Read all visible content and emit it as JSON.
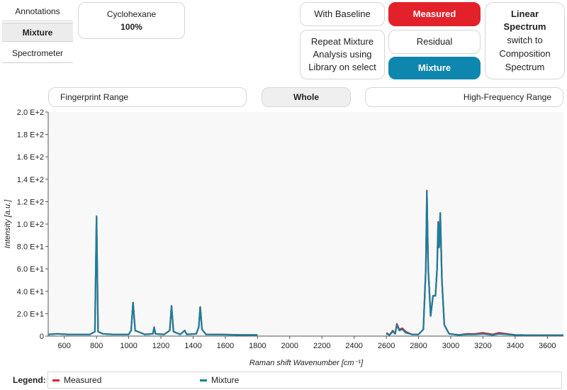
{
  "sidebar": {
    "tabs": [
      {
        "label": "Annotations",
        "active": false
      },
      {
        "label": "Mixture",
        "active": true
      },
      {
        "label": "Spectrometer",
        "active": false
      }
    ]
  },
  "composition": {
    "component": "Cyclohexane",
    "percent": "100%"
  },
  "buttons": {
    "with_baseline": "With Baseline",
    "measured": "Measured",
    "repeat_line1": "Repeat Mixture",
    "repeat_line2": "Analysis using",
    "repeat_line3": "Library on select",
    "residual": "Residual",
    "mixture": "Mixture"
  },
  "spectrum_switch": {
    "title_line1": "Linear",
    "title_line2": "Spectrum",
    "line3": "switch to",
    "line4": "Composition",
    "line5": "Spectrum"
  },
  "ranges": {
    "fingerprint": "Fingerprint Range",
    "whole": "Whole",
    "high_frequency": "High-Frequency Range"
  },
  "colors": {
    "measured": "#e3212b",
    "mixture": "#1a7f9c",
    "accent_teal": "#0e86ad"
  },
  "legend": {
    "title": "Legend:",
    "items": [
      "Measured",
      "Mixture"
    ]
  },
  "chart_data": {
    "type": "line",
    "xlabel": "Raman shift Wavenumber [cm⁻¹]",
    "ylabel": "Intensity [a.u.]",
    "xlim": [
      500,
      3700
    ],
    "ylim": [
      0,
      200
    ],
    "x_ticks": [
      600,
      800,
      1000,
      1200,
      1400,
      1600,
      1800,
      2000,
      2200,
      2400,
      2600,
      2800,
      3000,
      3200,
      3400,
      3600
    ],
    "y_ticks": [
      {
        "value": 0,
        "label": "0"
      },
      {
        "value": 20,
        "label": "2.0 E+1"
      },
      {
        "value": 40,
        "label": "4.0 E+1"
      },
      {
        "value": 60,
        "label": "6.0 E+1"
      },
      {
        "value": 80,
        "label": "8.0 E+1"
      },
      {
        "value": 100,
        "label": "1.0 E+2"
      },
      {
        "value": 120,
        "label": "1.2 E+2"
      },
      {
        "value": 140,
        "label": "1.4 E+2"
      },
      {
        "value": 160,
        "label": "1.6 E+2"
      },
      {
        "value": 180,
        "label": "1.8 E+2"
      },
      {
        "value": 200,
        "label": "2.0 E+2"
      }
    ],
    "grid": false,
    "legend_position": "bottom",
    "series": [
      {
        "name": "Measured",
        "segments": [
          [
            [
              500,
              1.5
            ],
            [
              560,
              2
            ],
            [
              620,
              1.5
            ],
            [
              700,
              1.5
            ],
            [
              760,
              1.5
            ],
            [
              790,
              4
            ],
            [
              800,
              106
            ],
            [
              810,
              4
            ],
            [
              840,
              2
            ],
            [
              900,
              1.5
            ],
            [
              1000,
              1.5
            ],
            [
              1015,
              5
            ],
            [
              1027,
              30
            ],
            [
              1040,
              5
            ],
            [
              1100,
              1.5
            ],
            [
              1150,
              2
            ],
            [
              1158,
              8
            ],
            [
              1166,
              2
            ],
            [
              1220,
              1.5
            ],
            [
              1255,
              5
            ],
            [
              1266,
              27
            ],
            [
              1278,
              4
            ],
            [
              1320,
              1.5
            ],
            [
              1348,
              5
            ],
            [
              1360,
              1.5
            ],
            [
              1420,
              2
            ],
            [
              1435,
              8
            ],
            [
              1444,
              26
            ],
            [
              1455,
              6
            ],
            [
              1480,
              1.5
            ],
            [
              1600,
              1.3
            ],
            [
              1700,
              1
            ],
            [
              1800,
              1
            ]
          ],
          [
            [
              2600,
              3
            ],
            [
              2620,
              1
            ],
            [
              2640,
              5
            ],
            [
              2655,
              2
            ],
            [
              2665,
              11
            ],
            [
              2680,
              6
            ],
            [
              2700,
              7
            ],
            [
              2720,
              4
            ],
            [
              2760,
              1.5
            ],
            [
              2800,
              1.5
            ],
            [
              2830,
              6
            ],
            [
              2845,
              60
            ],
            [
              2852,
              130
            ],
            [
              2860,
              60
            ],
            [
              2875,
              18
            ],
            [
              2890,
              36
            ],
            [
              2905,
              36
            ],
            [
              2915,
              60
            ],
            [
              2922,
              102
            ],
            [
              2928,
              80
            ],
            [
              2935,
              110
            ],
            [
              2945,
              50
            ],
            [
              2960,
              10
            ],
            [
              2990,
              2
            ],
            [
              3050,
              1
            ],
            [
              3100,
              2
            ],
            [
              3150,
              2
            ],
            [
              3200,
              3
            ],
            [
              3260,
              1.5
            ],
            [
              3300,
              3
            ],
            [
              3400,
              1
            ],
            [
              3500,
              0.8
            ],
            [
              3600,
              0.8
            ],
            [
              3700,
              0.8
            ]
          ]
        ]
      },
      {
        "name": "Mixture",
        "segments": [
          [
            [
              500,
              1.5
            ],
            [
              560,
              2
            ],
            [
              620,
              1.5
            ],
            [
              700,
              1.5
            ],
            [
              760,
              1.5
            ],
            [
              790,
              4
            ],
            [
              800,
              107
            ],
            [
              810,
              4
            ],
            [
              840,
              2
            ],
            [
              900,
              1.5
            ],
            [
              1000,
              1.5
            ],
            [
              1015,
              5
            ],
            [
              1027,
              30
            ],
            [
              1040,
              5
            ],
            [
              1100,
              1.5
            ],
            [
              1150,
              2
            ],
            [
              1158,
              8
            ],
            [
              1166,
              2
            ],
            [
              1220,
              1.5
            ],
            [
              1255,
              5
            ],
            [
              1266,
              27
            ],
            [
              1278,
              4
            ],
            [
              1320,
              1.5
            ],
            [
              1348,
              5
            ],
            [
              1360,
              1.5
            ],
            [
              1420,
              2
            ],
            [
              1435,
              8
            ],
            [
              1444,
              26
            ],
            [
              1455,
              6
            ],
            [
              1480,
              1.5
            ],
            [
              1600,
              1.3
            ],
            [
              1700,
              1
            ],
            [
              1800,
              1
            ]
          ],
          [
            [
              2600,
              2
            ],
            [
              2620,
              1
            ],
            [
              2640,
              4
            ],
            [
              2655,
              2
            ],
            [
              2665,
              10
            ],
            [
              2680,
              5
            ],
            [
              2700,
              6
            ],
            [
              2720,
              3
            ],
            [
              2760,
              1.5
            ],
            [
              2800,
              1.5
            ],
            [
              2830,
              6
            ],
            [
              2845,
              60
            ],
            [
              2852,
              129
            ],
            [
              2860,
              60
            ],
            [
              2875,
              18
            ],
            [
              2890,
              36
            ],
            [
              2905,
              36
            ],
            [
              2915,
              60
            ],
            [
              2922,
              101
            ],
            [
              2928,
              79
            ],
            [
              2935,
              110
            ],
            [
              2945,
              50
            ],
            [
              2960,
              10
            ],
            [
              2990,
              2
            ],
            [
              3050,
              1
            ],
            [
              3100,
              1.5
            ],
            [
              3150,
              1.5
            ],
            [
              3200,
              2
            ],
            [
              3260,
              1
            ],
            [
              3300,
              2
            ],
            [
              3400,
              1
            ],
            [
              3500,
              0.8
            ],
            [
              3600,
              0.8
            ],
            [
              3700,
              0.8
            ]
          ]
        ]
      }
    ]
  }
}
